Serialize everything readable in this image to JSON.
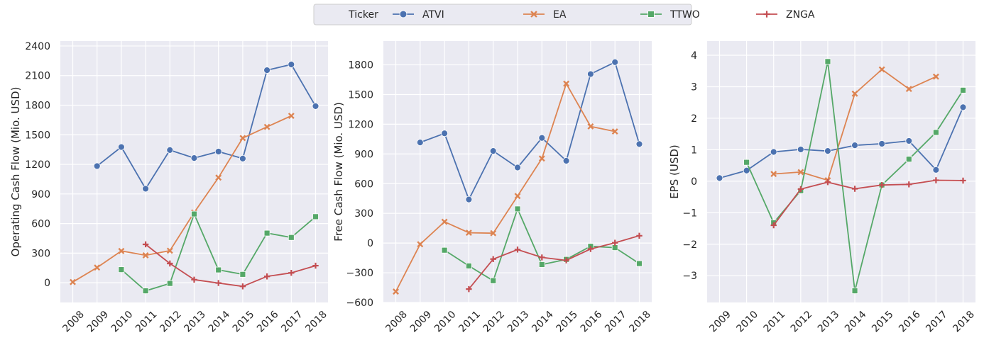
{
  "legend": {
    "title": "Ticker",
    "items": [
      {
        "label": "ATVI",
        "color": "#4c72b0",
        "marker": "circle"
      },
      {
        "label": "EA",
        "color": "#dd8452",
        "marker": "x"
      },
      {
        "label": "TTWO",
        "color": "#55a868",
        "marker": "square"
      },
      {
        "label": "ZNGA",
        "color": "#c44e52",
        "marker": "plus"
      }
    ],
    "placement": "top-center"
  },
  "chart_data": [
    {
      "type": "line",
      "title": "",
      "xlabel": "",
      "ylabel": "Operating Cash Flow (Mio. USD)",
      "x": [
        "2008",
        "2009",
        "2010",
        "2011",
        "2012",
        "2013",
        "2014",
        "2015",
        "2016",
        "2017",
        "2018"
      ],
      "ylim": [
        -200,
        2450
      ],
      "yticks": [
        0,
        300,
        600,
        900,
        1200,
        1500,
        1800,
        2100,
        2400
      ],
      "grid": true,
      "background": "#eaeaf2",
      "series": [
        {
          "name": "ATVI",
          "values": [
            null,
            1183,
            1376,
            953,
            1345,
            1264,
            1330,
            1259,
            2155,
            2213,
            1790
          ]
        },
        {
          "name": "EA",
          "values": [
            7,
            154,
            322,
            278,
            325,
            712,
            1066,
            1467,
            1580,
            1692,
            null
          ]
        },
        {
          "name": "TTWO",
          "values": [
            null,
            null,
            133,
            -82,
            -7,
            697,
            130,
            85,
            503,
            459,
            670
          ]
        },
        {
          "name": "ZNGA",
          "values": [
            null,
            null,
            null,
            389,
            195,
            31,
            -3,
            -37,
            64,
            100,
            173
          ]
        }
      ]
    },
    {
      "type": "line",
      "title": "",
      "xlabel": "",
      "ylabel": "Free Cash Flow  (Mio. USD)",
      "x": [
        "2008",
        "2009",
        "2010",
        "2011",
        "2012",
        "2013",
        "2014",
        "2015",
        "2016",
        "2017",
        "2018"
      ],
      "ylim": [
        -600,
        2040
      ],
      "yticks": [
        -600,
        -300,
        0,
        300,
        600,
        900,
        1200,
        1500,
        1800
      ],
      "grid": true,
      "background": "#eaeaf2",
      "series": [
        {
          "name": "ATVI",
          "values": [
            null,
            1016,
            1108,
            440,
            930,
            763,
            1062,
            831,
            1707,
            1827,
            1000
          ]
        },
        {
          "name": "EA",
          "values": [
            -490,
            -12,
            215,
            104,
            100,
            475,
            854,
            1610,
            1178,
            1127,
            null
          ]
        },
        {
          "name": "TTWO",
          "values": [
            null,
            null,
            -72,
            -231,
            -380,
            345,
            -217,
            -165,
            -33,
            -46,
            -207
          ]
        },
        {
          "name": "ZNGA",
          "values": [
            null,
            null,
            null,
            -465,
            -162,
            -66,
            -145,
            -175,
            -60,
            3,
            74
          ]
        }
      ]
    },
    {
      "type": "line",
      "title": "",
      "xlabel": "",
      "ylabel": "EPS (USD)",
      "x": [
        "2009",
        "2010",
        "2011",
        "2012",
        "2013",
        "2014",
        "2015",
        "2016",
        "2017",
        "2018"
      ],
      "ylim": [
        -3.85,
        4.45
      ],
      "yticks": [
        -3,
        -2,
        -1,
        0,
        1,
        2,
        3,
        4
      ],
      "grid": true,
      "background": "#eaeaf2",
      "series": [
        {
          "name": "ATVI",
          "values": [
            0.1,
            0.34,
            0.93,
            1.01,
            0.96,
            1.14,
            1.19,
            1.28,
            0.36,
            2.35
          ]
        },
        {
          "name": "EA",
          "values": [
            null,
            null,
            0.23,
            0.29,
            0.03,
            2.78,
            3.55,
            2.93,
            3.32,
            null
          ]
        },
        {
          "name": "TTWO",
          "values": [
            null,
            0.6,
            -1.32,
            -0.3,
            3.8,
            -3.48,
            -0.12,
            0.7,
            1.55,
            2.89
          ]
        },
        {
          "name": "ZNGA",
          "values": [
            null,
            null,
            -1.4,
            -0.25,
            -0.03,
            -0.24,
            -0.12,
            -0.1,
            0.03,
            0.02
          ]
        }
      ]
    }
  ]
}
